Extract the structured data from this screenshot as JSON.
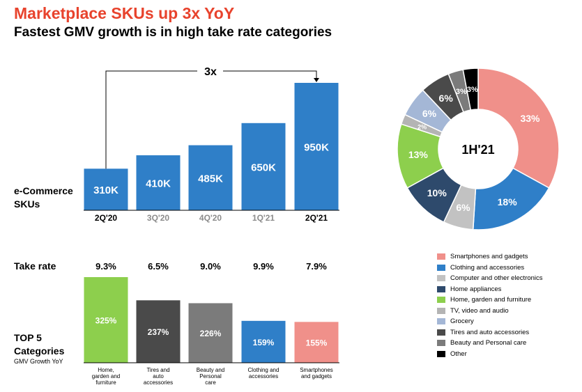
{
  "header": {
    "title": "Marketplace SKUs up 3x YoY",
    "subtitle": "Fastest GMV growth is in high take rate categories"
  },
  "labels": {
    "ecommerce_line1": "e-Commerce",
    "ecommerce_line2": "SKUs",
    "take_rate": "Take rate",
    "top5_line1": "TOP 5",
    "top5_line2": "Categories",
    "gmv_growth": "GMV Growth YoY"
  },
  "colors": {
    "blue": "#2f7fc8",
    "green": "#8dcf4d",
    "dark_gray": "#4a4a4a",
    "mid_gray": "#7b7b7b",
    "salmon": "#f0908a",
    "navy": "#2e4a6c",
    "light_gray": "#c2c2c2",
    "light_blue": "#a4b7d6",
    "black": "#000000",
    "title_red": "#e8432d"
  },
  "chart_data": [
    {
      "type": "bar",
      "title": "Marketplace SKUs up 3x YoY",
      "categories": [
        "2Q'20",
        "3Q'20",
        "4Q'20",
        "1Q'21",
        "2Q'21"
      ],
      "values": [
        310,
        410,
        485,
        650,
        950
      ],
      "value_labels": [
        "310K",
        "410K",
        "485K",
        "650K",
        "950K"
      ],
      "category_emphasis": [
        true,
        false,
        false,
        false,
        true
      ],
      "annotation": "3x",
      "ylabel": "e-Commerce SKUs",
      "ylim": [
        0,
        1000
      ]
    },
    {
      "type": "table",
      "title": "Take rate",
      "categories": [
        "2Q'20",
        "3Q'20",
        "4Q'20",
        "1Q'21",
        "2Q'21"
      ],
      "values": [
        "9.3%",
        "6.5%",
        "9.0%",
        "9.9%",
        "7.9%"
      ]
    },
    {
      "type": "bar",
      "title": "TOP 5 Categories",
      "ylabel": "GMV Growth YoY",
      "categories": [
        "Home, garden and furniture",
        "Tires and auto accessories",
        "Beauty and Personal care",
        "Clothing and accessories",
        "Smartphones and gadgets"
      ],
      "category_lines": [
        [
          "Home,",
          "garden and",
          "furniture"
        ],
        [
          "Tires and",
          "auto",
          "accessories"
        ],
        [
          "Beauty and",
          "Personal",
          "care"
        ],
        [
          "Clothing and",
          "accessories"
        ],
        [
          "Smartphones",
          "and gadgets"
        ]
      ],
      "values": [
        325,
        237,
        226,
        159,
        155
      ],
      "value_labels": [
        "325%",
        "237%",
        "226%",
        "159%",
        "155%"
      ],
      "colors": [
        "#8dcf4d",
        "#4a4a4a",
        "#7b7b7b",
        "#2f7fc8",
        "#f0908a"
      ],
      "ylim": [
        0,
        350
      ]
    },
    {
      "type": "pie",
      "center_label": "1H'21",
      "slices": [
        {
          "name": "Smartphones and gadgets",
          "value": 33,
          "label": "33%",
          "color": "#f0908a"
        },
        {
          "name": "Clothing and accessories",
          "value": 18,
          "label": "18%",
          "color": "#2f7fc8"
        },
        {
          "name": "Computer and other electronics",
          "value": 6,
          "label": "6%",
          "color": "#c2c2c2"
        },
        {
          "name": "Home appliances",
          "value": 10,
          "label": "10%",
          "color": "#2e4a6c"
        },
        {
          "name": "Home, garden and furniture",
          "value": 13,
          "label": "13%",
          "color": "#8dcf4d"
        },
        {
          "name": "TV, video and audio",
          "value": 2,
          "label": "2%",
          "color": "#b4b4b4"
        },
        {
          "name": "Grocery",
          "value": 6,
          "label": "6%",
          "color": "#a4b7d6"
        },
        {
          "name": "Tires and auto accessories",
          "value": 6,
          "label": "6%",
          "color": "#4a4a4a"
        },
        {
          "name": "Beauty and Personal care",
          "value": 3,
          "label": "3%",
          "color": "#7b7b7b"
        },
        {
          "name": "Other",
          "value": 3,
          "label": "3%",
          "color": "#000000"
        }
      ],
      "legend_position": "bottom-right"
    }
  ]
}
